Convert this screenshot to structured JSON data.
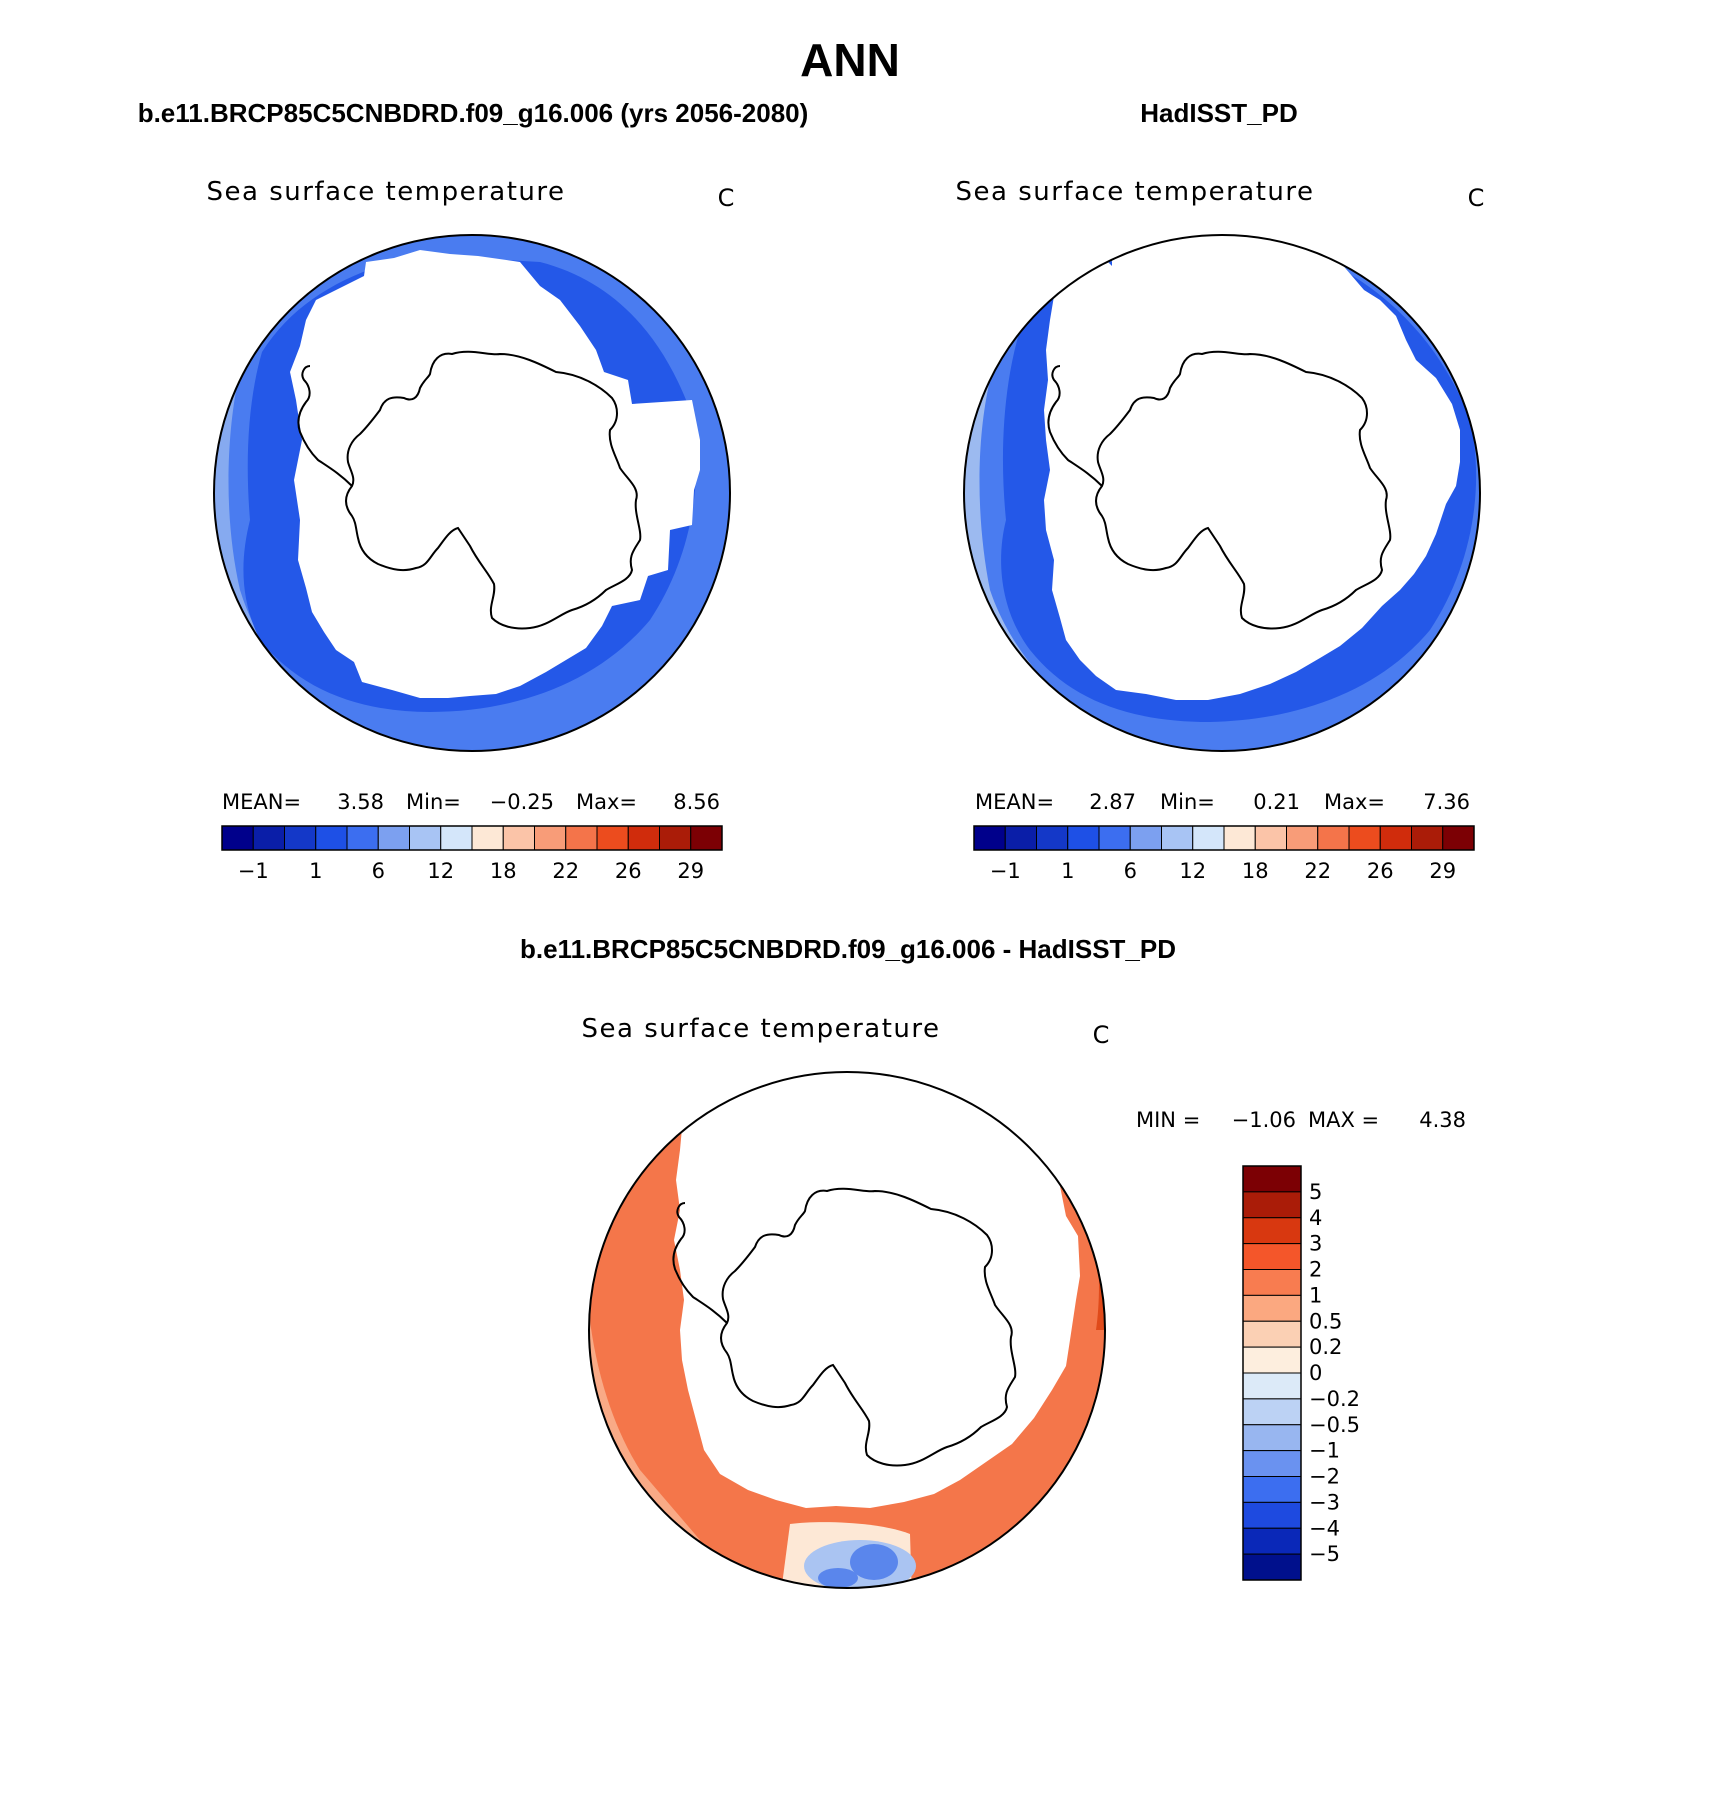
{
  "page_title": "ANN",
  "panels": [
    {
      "id": "model",
      "heading": "b.e11.BRCP85C5CNBDRD.f09_g16.006 (yrs 2056-2080)",
      "subtitle": "Sea surface temperature",
      "units": "C",
      "stats": {
        "mean_label": "MEAN=",
        "mean": "3.58",
        "min_label": "Min=",
        "min": "-0.25",
        "max_label": "Max=",
        "max": "8.56"
      }
    },
    {
      "id": "obs",
      "heading": "HadISST_PD",
      "subtitle": "Sea surface temperature",
      "units": "C",
      "stats": {
        "mean_label": "MEAN=",
        "mean": "2.87",
        "min_label": "Min=",
        "min": "0.21",
        "max_label": "Max=",
        "max": "7.36"
      }
    },
    {
      "id": "diff",
      "heading": "b.e11.BRCP85C5CNBDRD.f09_g16.006 - HadISST_PD",
      "subtitle": "Sea surface temperature",
      "units": "C",
      "stats": {
        "min_label": "MIN =",
        "min": "-1.06",
        "max_label": "MAX =",
        "max": "4.38"
      }
    }
  ],
  "sst_colorbar": {
    "colors": [
      "#00008b",
      "#0a1ea8",
      "#1438c8",
      "#1e50e6",
      "#3c6ef0",
      "#7ca0f0",
      "#a8c4f4",
      "#d4e6fa",
      "#fde8d6",
      "#fbc4a8",
      "#f89c78",
      "#f4744a",
      "#ec4c1e",
      "#d02c0c",
      "#aa1c08",
      "#7c0004"
    ],
    "tick_labels": [
      "-1",
      "1",
      "6",
      "12",
      "18",
      "22",
      "26",
      "29"
    ]
  },
  "diff_colorbar": {
    "colors": [
      "#7c0004",
      "#aa1c08",
      "#d83810",
      "#f4562a",
      "#f87c50",
      "#fba880",
      "#fbd0b4",
      "#fdeede",
      "#dceaf8",
      "#bcd2f4",
      "#98b6f0",
      "#6a92f0",
      "#3c6ef0",
      "#1e4ae0",
      "#0a28b8",
      "#00108c"
    ],
    "tick_labels": [
      "5",
      "4",
      "3",
      "2",
      "1",
      "0.5",
      "0.2",
      "0",
      "-0.2",
      "-0.5",
      "-1",
      "-2",
      "-3",
      "-4",
      "-5"
    ]
  },
  "colors": {
    "model_outer": "#4a7cf0",
    "model_inner": "#2458e8",
    "model_edge": "#86aaf0",
    "obs_outer": "#4a7cf0",
    "obs_inner": "#2458e8",
    "obs_edge": "#9cbaf0",
    "diff_main": "#f4764a",
    "diff_light": "#f9aa86",
    "diff_dark": "#e04a1a",
    "diff_cool": "#5a86ec",
    "diff_cool_light": "#aac4f2",
    "diff_neutral": "#fde8d6"
  }
}
